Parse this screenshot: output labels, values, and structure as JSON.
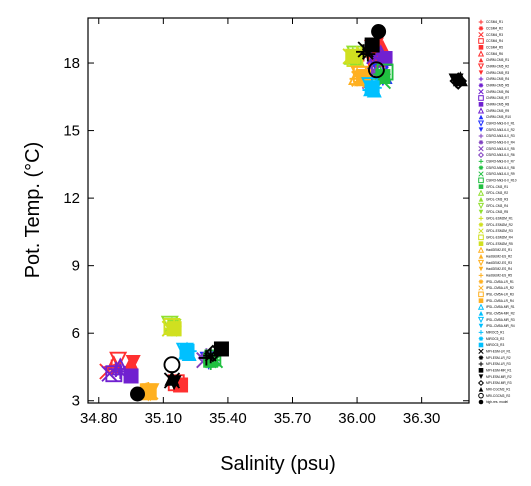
{
  "chart_data": {
    "type": "scatter",
    "xlabel": "Salinity (psu)",
    "ylabel": "Pot. Temp. (°C)",
    "xlim": [
      34.75,
      36.52
    ],
    "ylim": [
      2.9,
      20.0
    ],
    "x_ticks": [
      34.8,
      35.1,
      35.4,
      35.7,
      36.0,
      36.3
    ],
    "x_tick_labels": [
      "34.80",
      "35.10",
      "35.40",
      "35.70",
      "36.00",
      "36.30"
    ],
    "y_ticks": [
      3,
      6,
      9,
      12,
      15,
      18
    ],
    "y_tick_labels": [
      "3",
      "6",
      "9",
      "12",
      "15",
      "18"
    ],
    "grid": false,
    "legend_position": "right outside",
    "series": [
      {
        "name": "CCSM4_R1",
        "marker": "plus",
        "color": "#ff3030",
        "points": [
          [
            36.05,
            18.6
          ],
          [
            34.86,
            4.5
          ]
        ]
      },
      {
        "name": "CCSM4_R2",
        "marker": "asterisk",
        "color": "#ff3030",
        "points": [
          [
            36.03,
            18.4
          ],
          [
            34.88,
            4.4
          ]
        ]
      },
      {
        "name": "CCSM4_R3",
        "marker": "x",
        "color": "#ff3030",
        "points": [
          [
            36.07,
            18.7
          ],
          [
            34.84,
            4.3
          ]
        ]
      },
      {
        "name": "CCSM4_R4",
        "marker": "square-open",
        "color": "#ff3030",
        "points": [
          [
            36.09,
            18.2
          ],
          [
            35.16,
            3.8
          ]
        ]
      },
      {
        "name": "CCSM4_R5",
        "marker": "square",
        "color": "#ff3030",
        "points": [
          [
            36.1,
            18.4
          ],
          [
            35.18,
            3.7
          ]
        ]
      },
      {
        "name": "CCSM4_R6",
        "marker": "triangle-open",
        "color": "#ff3030",
        "points": [
          [
            36.11,
            18.5
          ],
          [
            34.87,
            4.6
          ]
        ]
      },
      {
        "name": "CNRM-CM5_R1",
        "marker": "triangle",
        "color": "#ff3030",
        "points": [
          [
            36.12,
            18.7
          ],
          [
            34.95,
            4.7
          ]
        ]
      },
      {
        "name": "CNRM-CM5_R2",
        "marker": "triangle-down-open",
        "color": "#ff3030",
        "points": [
          [
            36.08,
            18.6
          ],
          [
            34.89,
            4.8
          ]
        ]
      },
      {
        "name": "CNRM-CM5_R3",
        "marker": "triangle-down",
        "color": "#ff3030",
        "points": [
          [
            36.09,
            18.8
          ],
          [
            34.96,
            4.7
          ]
        ]
      },
      {
        "name": "CNRM-CM5_R4",
        "marker": "plus",
        "color": "#7020d0",
        "points": [
          [
            36.1,
            18.2
          ],
          [
            34.88,
            4.4
          ]
        ]
      },
      {
        "name": "CNRM-CM5_R5",
        "marker": "asterisk",
        "color": "#7020d0",
        "points": [
          [
            36.12,
            18.0
          ],
          [
            34.9,
            4.3
          ]
        ]
      },
      {
        "name": "CNRM-CM5_R6",
        "marker": "x",
        "color": "#7020d0",
        "points": [
          [
            36.08,
            18.3
          ],
          [
            34.85,
            4.2
          ]
        ]
      },
      {
        "name": "CNRM-CM5_R7",
        "marker": "square-open",
        "color": "#7020d0",
        "points": [
          [
            36.1,
            17.9
          ],
          [
            34.87,
            4.2
          ]
        ]
      },
      {
        "name": "CNRM-CM5_R8",
        "marker": "square",
        "color": "#7020d0",
        "points": [
          [
            36.13,
            18.2
          ],
          [
            34.95,
            4.1
          ]
        ]
      },
      {
        "name": "CNRM-CM5_R9",
        "marker": "triangle-open",
        "color": "#7020d0",
        "points": [
          [
            36.11,
            18.4
          ],
          [
            34.9,
            4.5
          ]
        ]
      },
      {
        "name": "CNRM-CM5_R10",
        "marker": "triangle",
        "color": "#2030ff",
        "points": [
          [
            36.13,
            17.4
          ],
          [
            35.33,
            4.9
          ]
        ]
      },
      {
        "name": "CSIRO-Mk3-6-0_R1",
        "marker": "triangle-down-open",
        "color": "#2030ff",
        "points": [
          [
            36.11,
            17.6
          ],
          [
            35.31,
            4.8
          ]
        ]
      },
      {
        "name": "CSIRO-Mk3-6-0_R2",
        "marker": "triangle-down",
        "color": "#2030ff",
        "points": [
          [
            36.12,
            17.3
          ],
          [
            35.32,
            4.7
          ]
        ]
      },
      {
        "name": "CSIRO-Mk3-6-0_R3",
        "marker": "plus",
        "color": "#8040c0",
        "points": [
          [
            36.05,
            17.5
          ],
          [
            35.3,
            5.0
          ]
        ]
      },
      {
        "name": "CSIRO-Mk3-6-0_R4",
        "marker": "asterisk",
        "color": "#8040c0",
        "points": [
          [
            36.07,
            17.6
          ],
          [
            35.31,
            4.9
          ]
        ]
      },
      {
        "name": "CSIRO-Mk3-6-0_R5",
        "marker": "x",
        "color": "#8040c0",
        "points": [
          [
            36.06,
            17.2
          ],
          [
            35.29,
            4.8
          ]
        ]
      },
      {
        "name": "CSIRO-Mk3-6-0_R6",
        "marker": "diamond-open",
        "color": "#8040c0",
        "points": [
          [
            36.08,
            17.4
          ],
          [
            35.3,
            4.9
          ]
        ]
      },
      {
        "name": "CSIRO-Mk3-6-0_R7",
        "marker": "plus",
        "color": "#20c040",
        "points": [
          [
            36.1,
            17.3
          ],
          [
            35.33,
            4.8
          ]
        ]
      },
      {
        "name": "CSIRO-Mk3-6-0_R8",
        "marker": "asterisk",
        "color": "#20c040",
        "points": [
          [
            36.11,
            17.5
          ],
          [
            35.32,
            4.7
          ]
        ]
      },
      {
        "name": "CSIRO-Mk3-6-0_R9",
        "marker": "x",
        "color": "#20c040",
        "points": [
          [
            36.12,
            17.2
          ],
          [
            35.34,
            4.8
          ]
        ]
      },
      {
        "name": "CSIRO-Mk3-6-0_R10",
        "marker": "square-open",
        "color": "#20c040",
        "points": [
          [
            36.13,
            17.6
          ],
          [
            35.33,
            4.9
          ]
        ]
      },
      {
        "name": "GFDL-CM3_R1",
        "marker": "square",
        "color": "#20c040",
        "points": [
          [
            36.12,
            17.4
          ],
          [
            35.32,
            4.8
          ]
        ]
      },
      {
        "name": "GFDL-CM3_R2",
        "marker": "triangle-open",
        "color": "#90e030",
        "points": [
          [
            35.98,
            18.3
          ],
          [
            35.14,
            6.3
          ]
        ]
      },
      {
        "name": "GFDL-CM3_R3",
        "marker": "triangle",
        "color": "#90e030",
        "points": [
          [
            36.0,
            18.2
          ],
          [
            35.15,
            6.2
          ]
        ]
      },
      {
        "name": "GFDL-CM3_R4",
        "marker": "triangle-down-open",
        "color": "#90e030",
        "points": [
          [
            35.99,
            18.4
          ],
          [
            35.13,
            6.4
          ]
        ]
      },
      {
        "name": "GFDL-CM3_R5",
        "marker": "triangle-down",
        "color": "#90e030",
        "points": [
          [
            36.01,
            18.3
          ],
          [
            35.15,
            6.3
          ]
        ]
      },
      {
        "name": "GFDL-ESM2M_R1",
        "marker": "plus",
        "color": "#d0e020",
        "points": [
          [
            36.0,
            18.4
          ],
          [
            35.14,
            6.2
          ]
        ]
      },
      {
        "name": "GFDL-ESM2M_R2",
        "marker": "asterisk",
        "color": "#d0e020",
        "points": [
          [
            36.02,
            18.5
          ],
          [
            35.15,
            6.3
          ]
        ]
      },
      {
        "name": "GFDL-ESM2M_R3",
        "marker": "x",
        "color": "#d0e020",
        "points": [
          [
            35.97,
            18.3
          ],
          [
            35.13,
            6.2
          ]
        ]
      },
      {
        "name": "GFDL-ESM2M_R4",
        "marker": "square-open",
        "color": "#d0e020",
        "points": [
          [
            35.99,
            18.2
          ],
          [
            35.14,
            6.3
          ]
        ]
      },
      {
        "name": "GFDL-ESM2M_R5",
        "marker": "square",
        "color": "#d0e020",
        "points": [
          [
            35.98,
            18.3
          ],
          [
            35.15,
            6.2
          ]
        ]
      },
      {
        "name": "HadGEM2-ES_R1",
        "marker": "triangle-open",
        "color": "#ffb020",
        "points": [
          [
            36.0,
            17.4
          ],
          [
            35.03,
            3.4
          ]
        ]
      },
      {
        "name": "HadGEM2-ES_R2",
        "marker": "triangle",
        "color": "#ffb020",
        "points": [
          [
            36.02,
            17.3
          ],
          [
            35.02,
            3.5
          ]
        ]
      },
      {
        "name": "HadGEM2-ES_R3",
        "marker": "triangle-down-open",
        "color": "#ffb020",
        "points": [
          [
            36.01,
            17.5
          ],
          [
            35.04,
            3.4
          ]
        ]
      },
      {
        "name": "HadGEM2-ES_R4",
        "marker": "triangle-down",
        "color": "#ffb020",
        "points": [
          [
            36.03,
            17.2
          ],
          [
            35.03,
            3.3
          ]
        ]
      },
      {
        "name": "HadGEM2-ES_R5",
        "marker": "plus",
        "color": "#ffb020",
        "points": [
          [
            36.0,
            17.3
          ],
          [
            35.02,
            3.4
          ]
        ]
      },
      {
        "name": "IPSL-CM5A-LR_R1",
        "marker": "asterisk",
        "color": "#ffb020",
        "points": [
          [
            36.02,
            17.4
          ],
          [
            35.03,
            3.5
          ]
        ]
      },
      {
        "name": "IPSL-CM5A-LR_R2",
        "marker": "x",
        "color": "#ffb020",
        "points": [
          [
            36.01,
            17.3
          ],
          [
            35.04,
            3.4
          ]
        ]
      },
      {
        "name": "IPSL-CM5A-LR_R3",
        "marker": "square-open",
        "color": "#ffb020",
        "points": [
          [
            36.02,
            17.5
          ],
          [
            35.03,
            3.4
          ]
        ]
      },
      {
        "name": "IPSL-CM5A-LR_R4",
        "marker": "square",
        "color": "#ffb020",
        "points": [
          [
            36.03,
            17.4
          ],
          [
            35.03,
            3.4
          ]
        ]
      },
      {
        "name": "IPSL-CM5A-MR_R1",
        "marker": "triangle-open",
        "color": "#00c0ff",
        "points": [
          [
            36.07,
            16.9
          ],
          [
            35.21,
            5.2
          ]
        ]
      },
      {
        "name": "IPSL-CM5A-MR_R2",
        "marker": "triangle",
        "color": "#00c0ff",
        "points": [
          [
            36.08,
            16.8
          ],
          [
            35.22,
            5.1
          ]
        ]
      },
      {
        "name": "IPSL-CM5A-MR_R3",
        "marker": "triangle-down-open",
        "color": "#00c0ff",
        "points": [
          [
            36.06,
            17.0
          ],
          [
            35.2,
            5.2
          ]
        ]
      },
      {
        "name": "IPSL-CM5A-MR_R4",
        "marker": "triangle-down",
        "color": "#00c0ff",
        "points": [
          [
            36.07,
            16.8
          ],
          [
            35.21,
            5.1
          ]
        ]
      },
      {
        "name": "MIROC5_R1",
        "marker": "plus",
        "color": "#00c0ff",
        "points": [
          [
            36.08,
            16.9
          ],
          [
            35.22,
            5.2
          ]
        ]
      },
      {
        "name": "MIROC5_R2",
        "marker": "asterisk",
        "color": "#00c0ff",
        "points": [
          [
            36.06,
            16.8
          ],
          [
            35.21,
            5.1
          ]
        ]
      },
      {
        "name": "MIROC5_R3",
        "marker": "square",
        "color": "#00c0ff",
        "points": [
          [
            36.07,
            16.9
          ],
          [
            35.21,
            5.2
          ]
        ]
      },
      {
        "name": "MPI-ESM-LR_R1",
        "marker": "x",
        "color": "#000000",
        "points": [
          [
            36.04,
            18.6
          ],
          [
            35.14,
            3.9
          ]
        ]
      },
      {
        "name": "MPI-ESM-LR_R2",
        "marker": "asterisk",
        "color": "#000000",
        "points": [
          [
            36.05,
            18.4
          ],
          [
            35.32,
            5.0
          ]
        ]
      },
      {
        "name": "MPI-ESM-LR_R3",
        "marker": "plus",
        "color": "#000000",
        "points": [
          [
            36.03,
            18.5
          ],
          [
            35.3,
            4.9
          ]
        ]
      },
      {
        "name": "MPI-ESM-MR_R1",
        "marker": "square",
        "color": "#000000",
        "points": [
          [
            36.07,
            18.8
          ],
          [
            35.37,
            5.3
          ]
        ]
      },
      {
        "name": "MPI-ESM-MR_R2",
        "marker": "triangle-down",
        "color": "#000000",
        "points": [
          [
            36.46,
            17.2
          ],
          [
            35.15,
            3.8
          ]
        ]
      },
      {
        "name": "MPI-ESM-MR_R3",
        "marker": "diamond-open",
        "color": "#000000",
        "points": [
          [
            36.47,
            17.2
          ],
          [
            35.33,
            5.1
          ]
        ]
      },
      {
        "name": "MRI-CGCM3_R1",
        "marker": "triangle",
        "color": "#000000",
        "points": [
          [
            36.48,
            17.3
          ],
          [
            35.14,
            4.0
          ]
        ]
      },
      {
        "name": "MRI-CGCM3_R2",
        "marker": "circle-open",
        "color": "#000000",
        "points": [
          [
            36.09,
            17.7
          ],
          [
            35.14,
            4.6
          ]
        ]
      },
      {
        "name": "high-res. model",
        "marker": "circle",
        "color": "#000000",
        "points": [
          [
            36.1,
            19.4
          ],
          [
            34.98,
            3.3
          ]
        ]
      }
    ]
  }
}
